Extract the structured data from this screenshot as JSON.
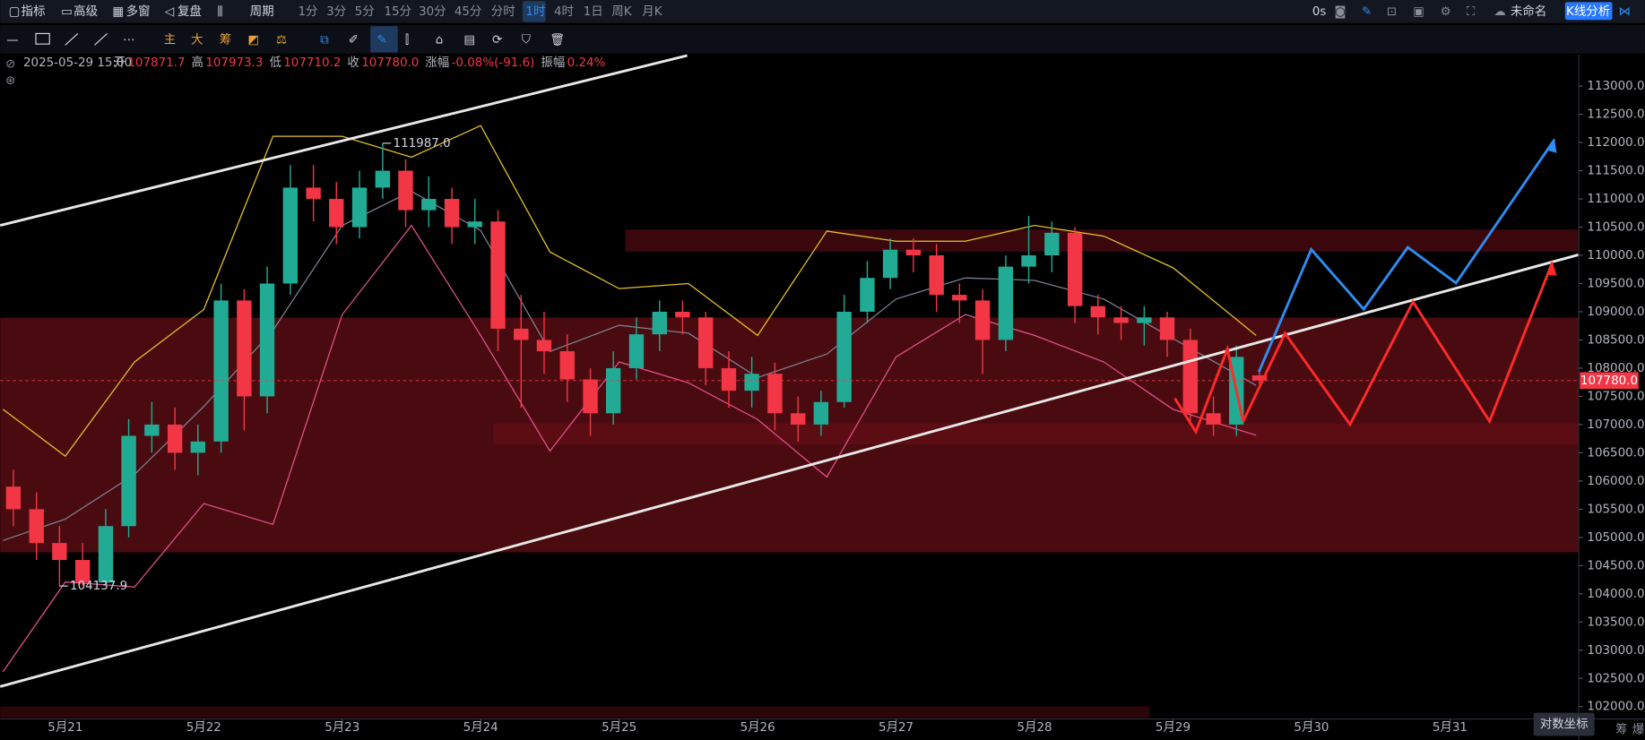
{
  "toolbar": {
    "left": [
      "指标",
      "高级",
      "多窗",
      "复盘",
      "周期"
    ],
    "periods": [
      "1分",
      "3分",
      "5分",
      "15分",
      "30分",
      "45分",
      "分时",
      "1时",
      "4时",
      "1日",
      "周K",
      "月K"
    ],
    "active_period": 7,
    "timer": "0s",
    "layout_name": "未命名",
    "analysis_button": "K线分析"
  },
  "drawing_tools": [
    "主",
    "大",
    "筹"
  ],
  "info": {
    "time": "2025-05-29 15:00",
    "fields": [
      {
        "label": "开",
        "value": "107871.7"
      },
      {
        "label": "高",
        "value": "107973.3"
      },
      {
        "label": "低",
        "value": "107710.2"
      },
      {
        "label": "收",
        "value": "107780.0"
      },
      {
        "label": "涨幅",
        "value": "-0.08%(-91.6)"
      },
      {
        "label": "振幅",
        "value": "0.24%"
      }
    ]
  },
  "chart_data": {
    "type": "candlestick",
    "up_color": "#22ab94",
    "down_color": "#f23645",
    "xlim": [
      20.53,
      31.93
    ],
    "xticks": [
      {
        "value": 21,
        "label": "5月21"
      },
      {
        "value": 22,
        "label": "5月22"
      },
      {
        "value": 23,
        "label": "5月23"
      },
      {
        "value": 24,
        "label": "5月24"
      },
      {
        "value": 25,
        "label": "5月25"
      },
      {
        "value": 26,
        "label": "5月26"
      },
      {
        "value": 27,
        "label": "5月27"
      },
      {
        "value": 28,
        "label": "5月28"
      },
      {
        "value": 29,
        "label": "5月29"
      },
      {
        "value": 30,
        "label": "5月30"
      },
      {
        "value": 31,
        "label": "5月31"
      }
    ],
    "ylim": [
      101780,
      113560
    ],
    "yticks": [
      {
        "value": 102000,
        "label": "102000.0"
      },
      {
        "value": 102500,
        "label": "102500.0"
      },
      {
        "value": 103000,
        "label": "103000.0"
      },
      {
        "value": 103500,
        "label": "103500.0"
      },
      {
        "value": 104000,
        "label": "104000.0"
      },
      {
        "value": 104500,
        "label": "104500.0"
      },
      {
        "value": 105000,
        "label": "105000.0"
      },
      {
        "value": 105500,
        "label": "105500.0"
      },
      {
        "value": 106000,
        "label": "106000.0"
      },
      {
        "value": 106500,
        "label": "106500.0"
      },
      {
        "value": 107000,
        "label": "107000.0"
      },
      {
        "value": 107500,
        "label": "107500.0"
      },
      {
        "value": 108000,
        "label": "108000.0"
      },
      {
        "value": 108500,
        "label": "108500.0"
      },
      {
        "value": 109000,
        "label": "109000.0"
      },
      {
        "value": 109500,
        "label": "109500.0"
      },
      {
        "value": 110000,
        "label": "110000.0"
      },
      {
        "value": 110500,
        "label": "110500.0"
      },
      {
        "value": 111000,
        "label": "111000.0"
      },
      {
        "value": 111500,
        "label": "111500.0"
      },
      {
        "value": 112000,
        "label": "112000.0"
      },
      {
        "value": 112500,
        "label": "112500.0"
      },
      {
        "value": 113000,
        "label": "113000.0"
      }
    ],
    "candles": {
      "x": [
        20.625,
        20.792,
        20.958,
        21.125,
        21.292,
        21.458,
        21.625,
        21.792,
        21.958,
        22.125,
        22.292,
        22.458,
        22.625,
        22.792,
        22.958,
        23.125,
        23.292,
        23.458,
        23.625,
        23.792,
        23.958,
        24.125,
        24.292,
        24.458,
        24.625,
        24.792,
        24.958,
        25.125,
        25.292,
        25.458,
        25.625,
        25.792,
        25.958,
        26.125,
        26.292,
        26.458,
        26.625,
        26.792,
        26.958,
        27.125,
        27.292,
        27.458,
        27.625,
        27.792,
        27.958,
        28.125,
        28.292,
        28.458,
        28.625,
        28.792,
        28.958,
        29.125,
        29.292,
        29.458,
        29.625
      ],
      "open": [
        105900,
        105500,
        104900,
        104600,
        104200,
        105200,
        106800,
        107000,
        106500,
        106700,
        109200,
        107500,
        109500,
        111200,
        111000,
        110500,
        111200,
        111500,
        110800,
        111000,
        110500,
        110600,
        108700,
        108500,
        108300,
        107800,
        107200,
        108000,
        108600,
        109000,
        108900,
        108000,
        107600,
        107900,
        107200,
        107000,
        107400,
        109000,
        109600,
        110100,
        110000,
        109300,
        109200,
        108500,
        109800,
        110000,
        110400,
        109100,
        108900,
        108800,
        108900,
        108500,
        107200,
        107000,
        107871.7
      ],
      "high": [
        106200,
        105800,
        105200,
        104900,
        105500,
        107100,
        107400,
        107300,
        107000,
        109500,
        109400,
        109800,
        111600,
        111600,
        111300,
        111500,
        111987,
        111700,
        111400,
        111200,
        111000,
        110800,
        109300,
        109000,
        108600,
        108000,
        108300,
        108900,
        109200,
        109200,
        109000,
        108300,
        108200,
        108100,
        107500,
        107600,
        109300,
        109900,
        110300,
        110300,
        110200,
        109500,
        109400,
        110000,
        110700,
        110600,
        110500,
        109300,
        109100,
        109100,
        109000,
        108700,
        107500,
        108400,
        107973.3
      ],
      "low": [
        105200,
        104600,
        104137.9,
        104150,
        104150,
        105000,
        106500,
        106200,
        106100,
        106500,
        106900,
        107200,
        109300,
        110600,
        110200,
        110300,
        111000,
        110500,
        110500,
        110200,
        110200,
        108300,
        107300,
        107900,
        107400,
        106800,
        107000,
        107800,
        108300,
        108600,
        107700,
        107300,
        107300,
        106900,
        106700,
        106800,
        107300,
        108800,
        109400,
        109700,
        109000,
        108800,
        107900,
        108300,
        109500,
        109700,
        108800,
        108600,
        108500,
        108400,
        108200,
        107000,
        106800,
        106800,
        107710.2
      ],
      "close": [
        105500,
        104900,
        104600,
        104200,
        105200,
        106800,
        107000,
        106500,
        106700,
        109200,
        107500,
        109500,
        111200,
        111000,
        110500,
        111200,
        111500,
        110800,
        111000,
        110500,
        110600,
        108700,
        108500,
        108300,
        107800,
        107200,
        108000,
        108600,
        109000,
        108900,
        108000,
        107600,
        107900,
        107200,
        107000,
        107400,
        109000,
        109600,
        110100,
        110000,
        109300,
        109200,
        108500,
        109800,
        110000,
        110400,
        109100,
        108900,
        108800,
        108900,
        108500,
        107200,
        107000,
        108200,
        107780
      ]
    },
    "bands": {
      "x": [
        20.55,
        21,
        21.5,
        22,
        22.5,
        23,
        23.5,
        24,
        24.5,
        25,
        25.5,
        26,
        26.5,
        27,
        27.5,
        28,
        28.5,
        29,
        29.6
      ],
      "series": [
        {
          "color": "#e6c02a",
          "values": [
            107270,
            106440,
            108110,
            109040,
            112110,
            112110,
            111740,
            112300,
            110060,
            109410,
            109500,
            108580,
            110430,
            110250,
            110250,
            110530,
            110340,
            109780,
            108580
          ]
        },
        {
          "color": "#7b7f91",
          "values": [
            104945,
            105325,
            106115,
            107320,
            108670,
            110530,
            111135,
            110440,
            108295,
            108760,
            108620,
            107835,
            108250,
            109225,
            109600,
            109555,
            109225,
            108525,
            107695
          ]
        },
        {
          "color": "#e0508c",
          "values": [
            102620,
            104210,
            104120,
            105600,
            105230,
            108950,
            110530,
            108580,
            106530,
            108110,
            107740,
            107090,
            106070,
            108200,
            108950,
            108580,
            108110,
            107270,
            106810
          ]
        }
      ]
    },
    "annotations": [
      {
        "x": 23.292,
        "value": {
          "value": 111987,
          "label": "111987.0"
        }
      },
      {
        "x": 20.958,
        "value": {
          "value": 104137.9,
          "label": "104137.9"
        }
      }
    ],
    "last_price": {
      "value": 107780,
      "label": "107780.0",
      "color": "#f23645"
    },
    "axis_mode": "对数坐标",
    "bottom_right": [
      "筹",
      "爆"
    ]
  }
}
